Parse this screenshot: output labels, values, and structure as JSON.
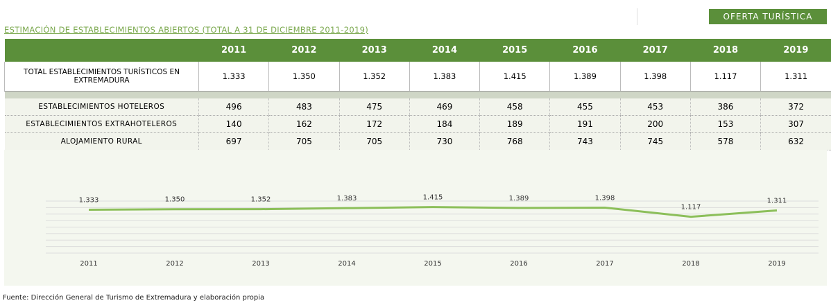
{
  "header": {
    "tag": "OFERTA TURÍSTICA",
    "title": "ESTIMACIÓN DE ESTABLECIMIENTOS ABIERTOS (TOTAL A 31 DE DICIEMBRE 2011-2019)"
  },
  "table": {
    "columns": [
      "2011",
      "2012",
      "2013",
      "2014",
      "2015",
      "2016",
      "2017",
      "2018",
      "2019"
    ],
    "total": {
      "label": "TOTAL ESTABLECIMIENTOS TURÍSTICOS EN EXTREMADURA",
      "values": [
        "1.333",
        "1.350",
        "1.352",
        "1.383",
        "1.415",
        "1.389",
        "1.398",
        "1.117",
        "1.311"
      ]
    },
    "rows": [
      {
        "label": "ESTABLECIMIENTOS HOTELEROS",
        "values": [
          "496",
          "483",
          "475",
          "469",
          "458",
          "455",
          "453",
          "386",
          "372"
        ]
      },
      {
        "label": "ESTABLECIMIENTOS EXTRAHOTELEROS",
        "values": [
          "140",
          "162",
          "172",
          "184",
          "189",
          "191",
          "200",
          "153",
          "307"
        ]
      },
      {
        "label": "ALOJAMIENTO RURAL",
        "values": [
          "697",
          "705",
          "705",
          "730",
          "768",
          "743",
          "745",
          "578",
          "632"
        ]
      }
    ]
  },
  "chart_data": {
    "type": "line",
    "categories": [
      "2011",
      "2012",
      "2013",
      "2014",
      "2015",
      "2016",
      "2017",
      "2018",
      "2019"
    ],
    "values": [
      1333,
      1350,
      1352,
      1383,
      1415,
      1389,
      1398,
      1117,
      1311
    ],
    "value_labels": [
      "1.333",
      "1.350",
      "1.352",
      "1.383",
      "1.415",
      "1.389",
      "1.398",
      "1.117",
      "1.311"
    ],
    "color": "#8cbf5a",
    "ylim": [
      0,
      1600
    ],
    "yticks": [
      0,
      200,
      400,
      600,
      800,
      1000,
      1200,
      1400,
      1600
    ],
    "grid": true
  },
  "footer": {
    "source": "Fuente: Dirección General de Turismo de Extremadura y elaboración propia"
  }
}
